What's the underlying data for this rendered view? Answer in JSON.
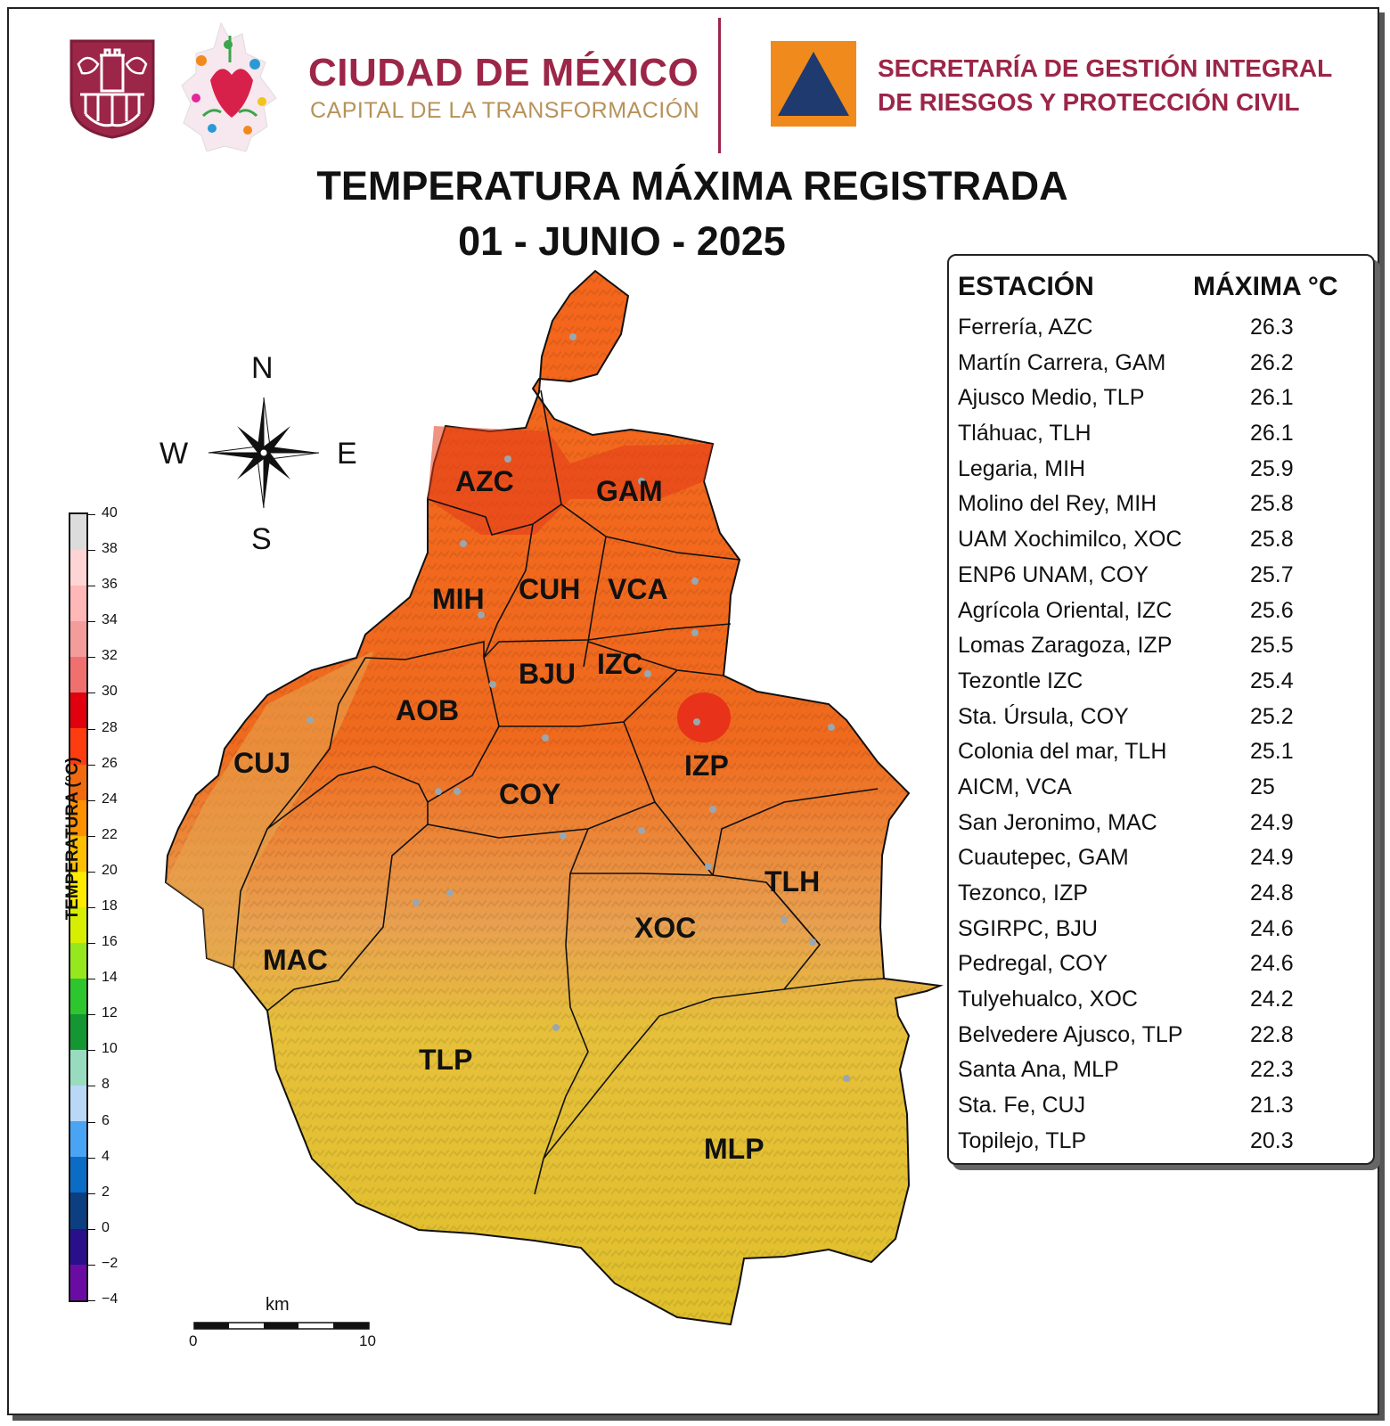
{
  "header": {
    "city_title": "CIUDAD DE MÉXICO",
    "city_subtitle": "CAPITAL DE LA TRANSFORMACIÓN",
    "agency_line1": "SECRETARÍA DE GESTIÓN INTEGRAL",
    "agency_line2": "DE RIESGOS Y PROTECCIÓN CIVIL",
    "brand_color": "#9c2648",
    "gold_color": "#b7925a",
    "pc_orange": "#f08a1d",
    "pc_blue": "#1f3a6e"
  },
  "title": {
    "line1": "TEMPERATURA MÁXIMA REGISTRADA",
    "line2": "01 - JUNIO - 2025"
  },
  "compass": {
    "north": "N",
    "south": "S",
    "east": "E",
    "west": "W"
  },
  "colorbar": {
    "label": "TEMPERATURA (°C)",
    "ticks": [
      "40",
      "38",
      "36",
      "34",
      "32",
      "30",
      "28",
      "26",
      "24",
      "22",
      "20",
      "18",
      "16",
      "14",
      "12",
      "10",
      "8",
      "6",
      "4",
      "2",
      "0",
      "−2",
      "−4"
    ],
    "colors": [
      "#dcdcdc",
      "#ffd4d4",
      "#ffb7b7",
      "#f49c9c",
      "#f07070",
      "#e0000e",
      "#ff3c10",
      "#f26a0e",
      "#ff9000",
      "#ffbe00",
      "#ffea00",
      "#d6ee00",
      "#96e81e",
      "#2ec62e",
      "#149632",
      "#98dcc0",
      "#b8d8f6",
      "#4aa4f4",
      "#0a6cc4",
      "#0c3e82",
      "#2a0f8c",
      "#6a0ca4",
      "#c860ec"
    ]
  },
  "scale": {
    "unit": "km",
    "start": "0",
    "end": "10"
  },
  "map": {
    "boroughs": [
      "AZC",
      "GAM",
      "MIH",
      "CUH",
      "VCA",
      "BJU",
      "IZC",
      "AOB",
      "CUJ",
      "IZP",
      "COY",
      "TLH",
      "XOC",
      "MAC",
      "TLP",
      "MLP"
    ]
  },
  "table": {
    "header_station": "ESTACIÓN",
    "header_max": "MÁXIMA °C",
    "rows": [
      {
        "station": "Ferrería, AZC",
        "max": "26.3"
      },
      {
        "station": "Martín Carrera, GAM",
        "max": "26.2"
      },
      {
        "station": "Ajusco Medio, TLP",
        "max": "26.1"
      },
      {
        "station": "Tláhuac, TLH",
        "max": "26.1"
      },
      {
        "station": "Legaria, MIH",
        "max": "25.9"
      },
      {
        "station": "Molino del Rey, MIH",
        "max": "25.8"
      },
      {
        "station": "UAM Xochimilco, XOC",
        "max": "25.8"
      },
      {
        "station": "ENP6 UNAM,  COY",
        "max": "25.7"
      },
      {
        "station": "Agrícola Oriental, IZC",
        "max": "25.6"
      },
      {
        "station": "Lomas Zaragoza, IZP",
        "max": "25.5"
      },
      {
        "station": "Tezontle IZC",
        "max": "25.4"
      },
      {
        "station": "Sta. Úrsula, COY",
        "max": "25.2"
      },
      {
        "station": "Colonia del mar, TLH",
        "max": "25.1"
      },
      {
        "station": "AICM, VCA",
        "max": "25"
      },
      {
        "station": "San Jeronimo, MAC",
        "max": "24.9"
      },
      {
        "station": "Cuautepec, GAM",
        "max": "24.9"
      },
      {
        "station": "Tezonco, IZP",
        "max": "24.8"
      },
      {
        "station": "SGIRPC, BJU",
        "max": "24.6"
      },
      {
        "station": "Pedregal, COY",
        "max": "24.6"
      },
      {
        "station": "Tulyehualco, XOC",
        "max": "24.2"
      },
      {
        "station": "Belvedere Ajusco, TLP",
        "max": "22.8"
      },
      {
        "station": "Santa Ana, MLP",
        "max": "22.3"
      },
      {
        "station": "Sta. Fe, CUJ",
        "max": "21.3"
      },
      {
        "station": "Topilejo, TLP",
        "max": "20.3"
      }
    ]
  }
}
